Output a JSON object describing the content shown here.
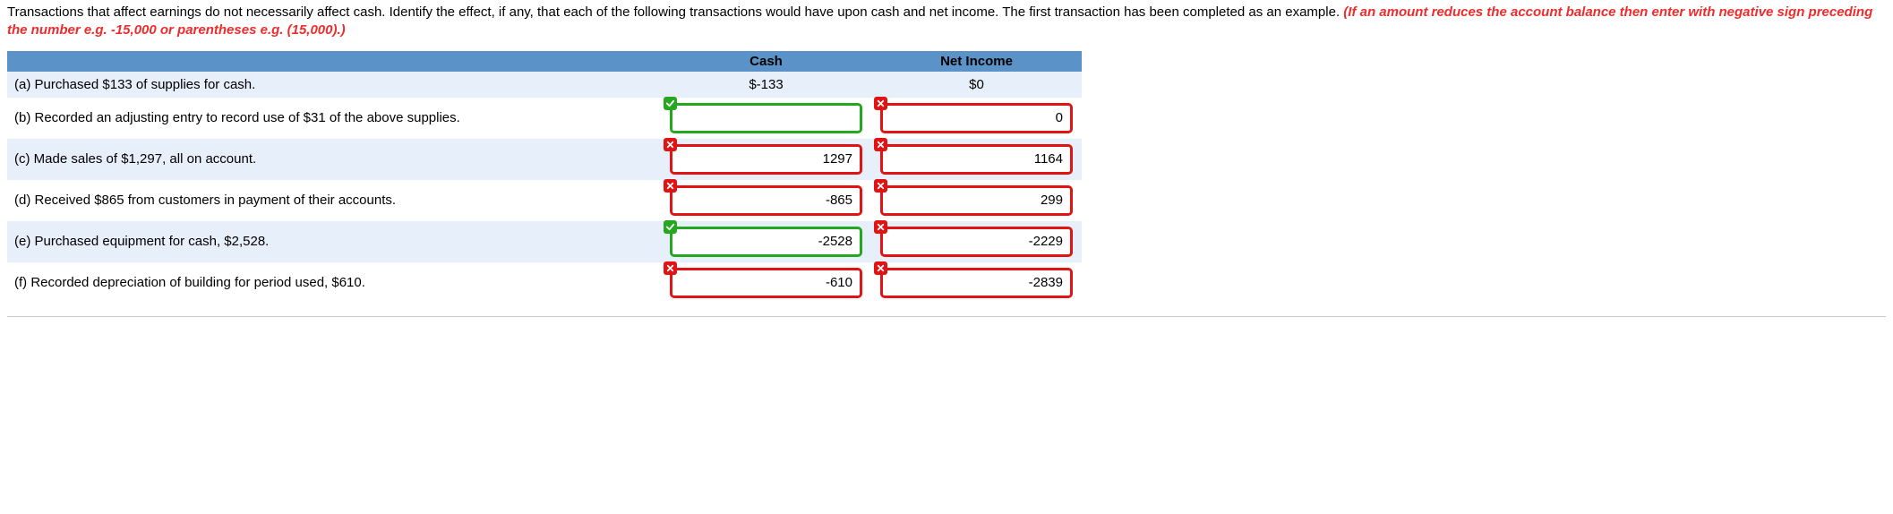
{
  "instructions": {
    "plain": "Transactions that affect earnings do not necessarily affect cash. Identify the effect, if any, that each of the following transactions would have upon cash and net income. The first transaction has been completed as an example. ",
    "emph": "(If an amount reduces the account balance then enter with negative sign preceding the number e.g. -15,000 or parentheses e.g. (15,000).)"
  },
  "headers": {
    "col1": "",
    "col2": "Cash",
    "col3": "Net Income"
  },
  "example": {
    "desc": "(a) Purchased $133 of supplies for cash.",
    "cash": "$-133",
    "net": "$0"
  },
  "rows": [
    {
      "desc": "(b) Recorded an adjusting entry to record use of $31 of the above supplies.",
      "cash": {
        "value": "",
        "status": "correct"
      },
      "net": {
        "value": "0",
        "status": "wrong"
      }
    },
    {
      "desc": "(c) Made sales of $1,297, all on account.",
      "cash": {
        "value": "1297",
        "status": "wrong"
      },
      "net": {
        "value": "1164",
        "status": "wrong"
      }
    },
    {
      "desc": "(d) Received $865 from customers in payment of their accounts.",
      "cash": {
        "value": "-865",
        "status": "wrong"
      },
      "net": {
        "value": "299",
        "status": "wrong"
      }
    },
    {
      "desc": "(e) Purchased equipment for cash, $2,528.",
      "cash": {
        "value": "-2528",
        "status": "correct"
      },
      "net": {
        "value": "-2229",
        "status": "wrong"
      }
    },
    {
      "desc": "(f) Recorded depreciation of building for period used, $610.",
      "cash": {
        "value": "-610",
        "status": "wrong"
      },
      "net": {
        "value": "-2839",
        "status": "wrong"
      }
    }
  ],
  "colors": {
    "header_bg": "#5b92c8",
    "row_bg": "#e7effa",
    "correct": "#25a81f",
    "wrong": "#e11313",
    "emph_text": "#ee2c2c"
  }
}
